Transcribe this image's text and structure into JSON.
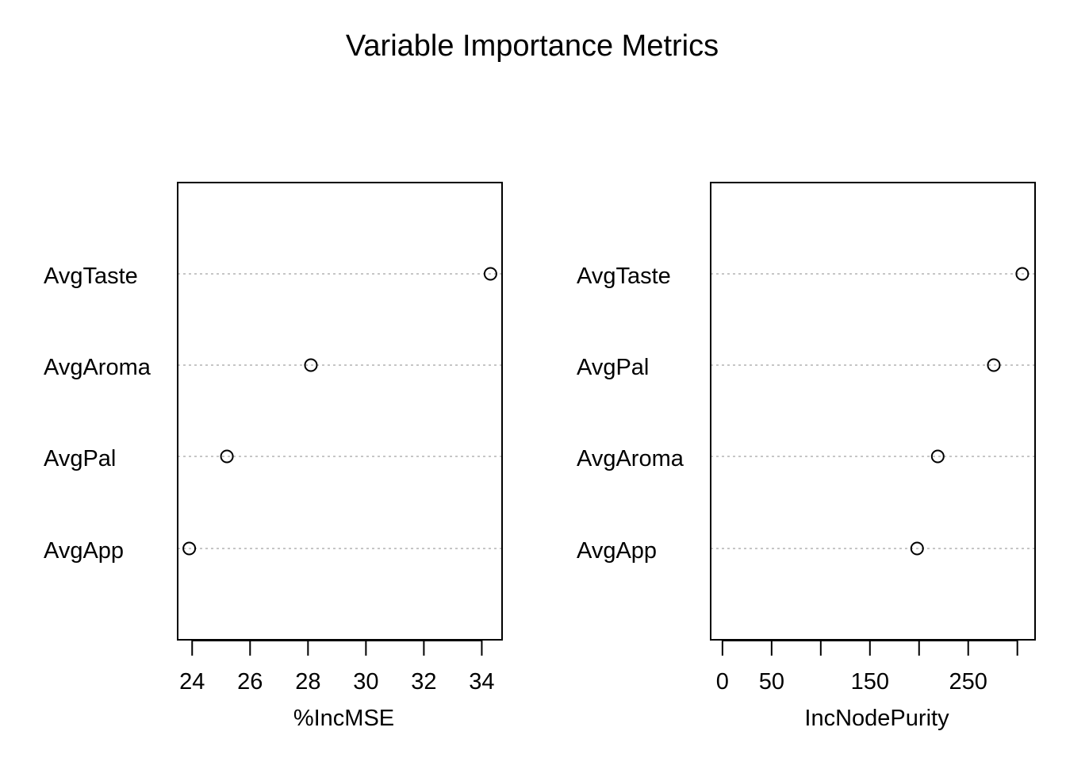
{
  "title": "Variable Importance Metrics",
  "chart_data": [
    {
      "type": "scatter",
      "subtype": "dotchart",
      "xlabel": "%IncMSE",
      "ylabel": "",
      "categories": [
        "AvgTaste",
        "AvgAroma",
        "AvgPal",
        "AvgApp"
      ],
      "values": [
        34.3,
        28.1,
        25.2,
        23.9
      ],
      "xticks": [
        24,
        26,
        28,
        30,
        32,
        34
      ],
      "xticklabels": [
        "24",
        "26",
        "28",
        "30",
        "32",
        "34"
      ],
      "xlim": [
        23.5,
        34.7
      ],
      "grid": "dotted horizontal guide lines",
      "marker": "open circle"
    },
    {
      "type": "scatter",
      "subtype": "dotchart",
      "xlabel": "IncNodePurity",
      "ylabel": "",
      "categories": [
        "AvgTaste",
        "AvgPal",
        "AvgAroma",
        "AvgApp"
      ],
      "values": [
        305,
        276,
        219,
        198
      ],
      "xticks": [
        0,
        50,
        100,
        150,
        200,
        250,
        300
      ],
      "xticklabels": [
        "0",
        "50",
        "",
        "150",
        "",
        "250",
        ""
      ],
      "xlim": [
        -12,
        318
      ],
      "grid": "dotted horizontal guide lines",
      "marker": "open circle"
    }
  ]
}
